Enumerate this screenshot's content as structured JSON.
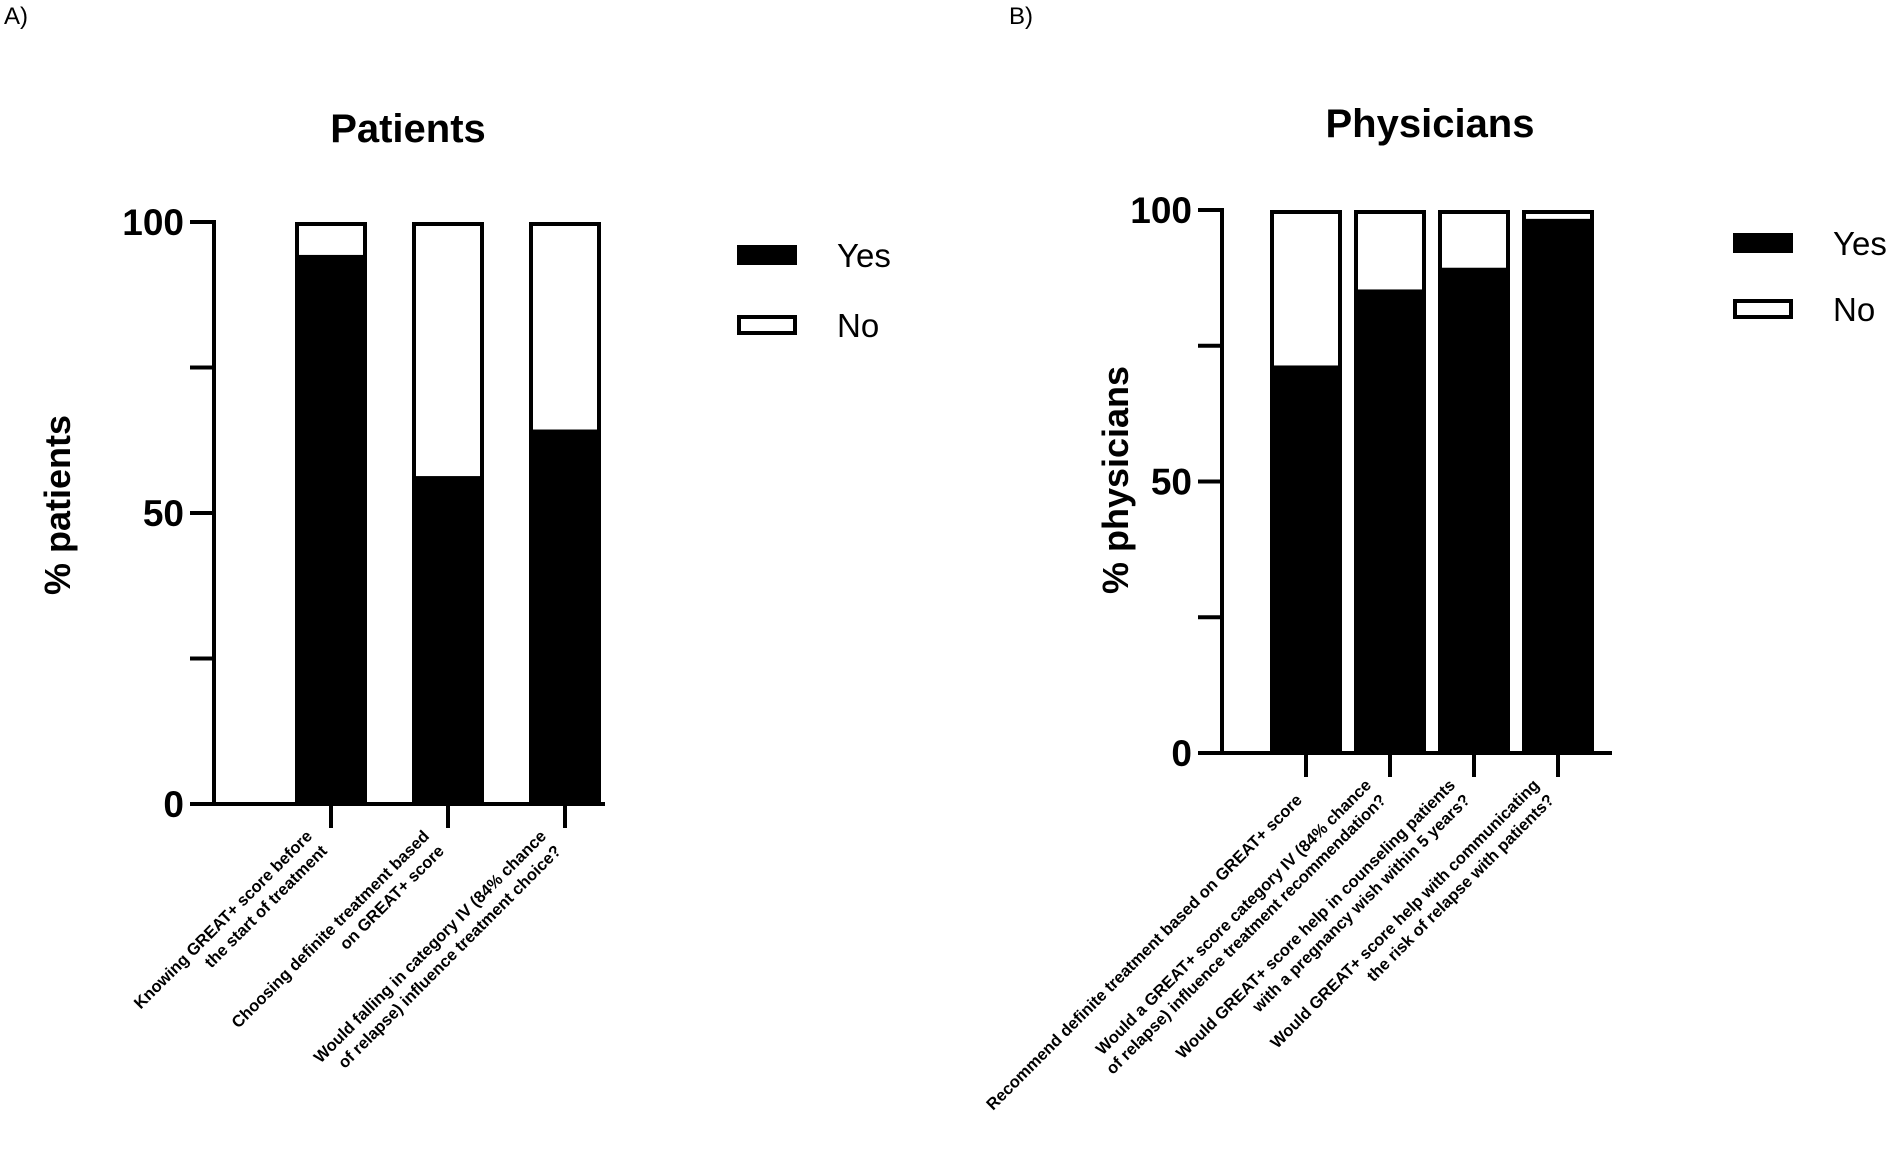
{
  "panels": [
    {
      "label": "A)"
    },
    {
      "label": "B)"
    }
  ],
  "chart_data": [
    {
      "type": "bar",
      "stacked": true,
      "title": "Patients",
      "xlabel": "",
      "ylabel": "% patients",
      "ylim": [
        0,
        100
      ],
      "yticks": [
        0,
        50,
        100
      ],
      "grid": false,
      "legend_position": "right",
      "categories": [
        [
          "Knowing GREAT+ score before",
          "the start of treatment"
        ],
        [
          "Choosing definite treatment based",
          "on GREAT+ score"
        ],
        [
          "Would falling in category IV (84% chance",
          "of relapse) influence treatment choice?"
        ]
      ],
      "series": [
        {
          "name": "Yes",
          "color": "#000000",
          "values": [
            94,
            56,
            64
          ]
        },
        {
          "name": "No",
          "color": "#ffffff",
          "values": [
            6,
            44,
            36
          ]
        }
      ]
    },
    {
      "type": "bar",
      "stacked": true,
      "title": "Physicians",
      "xlabel": "",
      "ylabel": "% physicians",
      "ylim": [
        0,
        100
      ],
      "yticks": [
        0,
        50,
        100
      ],
      "grid": false,
      "legend_position": "right",
      "categories": [
        [
          "Recommend definite treatment based on GREAT+ score"
        ],
        [
          "Would a GREAT+ score category IV (84% chance",
          "of relapse) influence treatment recommendation?"
        ],
        [
          "Would GREAT+ score help in counseling patients",
          "with a pregnancy wish within 5 years?"
        ],
        [
          "Would GREAT+ score help with communicating",
          "the risk of relapse with patients?"
        ]
      ],
      "series": [
        {
          "name": "Yes",
          "color": "#000000",
          "values": [
            71,
            85,
            89,
            98
          ]
        },
        {
          "name": "No",
          "color": "#ffffff",
          "values": [
            29,
            15,
            11,
            2
          ]
        }
      ]
    }
  ]
}
